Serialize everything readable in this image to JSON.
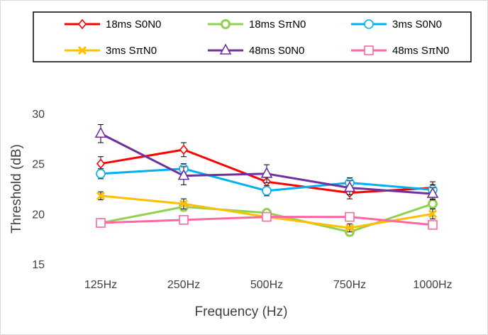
{
  "chart_data": {
    "type": "line",
    "title": "",
    "xlabel": "Frequency (Hz)",
    "ylabel": "Threshold (dB)",
    "ylim": [
      15,
      30
    ],
    "yticks": [
      15,
      20,
      25,
      30
    ],
    "categories": [
      "125Hz",
      "250Hz",
      "500Hz",
      "750Hz",
      "1000Hz"
    ],
    "grid": false,
    "legend_position": "top",
    "series": [
      {
        "name": "18ms S0N0",
        "color": "#ff0000",
        "marker": "diamond",
        "values": [
          25.0,
          26.4,
          23.2,
          22.1,
          22.6
        ],
        "errors": [
          0.7,
          0.7,
          0.6,
          0.6,
          0.6
        ]
      },
      {
        "name": "18ms SπN0",
        "color": "#92d050",
        "marker": "circle-thick",
        "values": [
          19.1,
          20.7,
          20.1,
          18.2,
          21.0
        ],
        "errors": [
          0.3,
          0.4,
          0.3,
          0.4,
          0.5
        ]
      },
      {
        "name": "3ms S0N0",
        "color": "#00b0f0",
        "marker": "circle",
        "values": [
          24.0,
          24.5,
          22.3,
          23.1,
          22.4
        ],
        "errors": [
          0.5,
          0.5,
          0.5,
          0.5,
          0.5
        ]
      },
      {
        "name": "3ms SπN0",
        "color": "#ffc000",
        "marker": "x",
        "values": [
          21.8,
          21.0,
          19.7,
          18.6,
          20.0
        ],
        "errors": [
          0.4,
          0.5,
          0.4,
          0.4,
          0.5
        ]
      },
      {
        "name": "48ms S0N0",
        "color": "#7030a0",
        "marker": "triangle",
        "values": [
          28.0,
          23.8,
          24.0,
          22.6,
          22.0
        ],
        "errors": [
          0.9,
          0.9,
          0.9,
          0.7,
          0.6
        ]
      },
      {
        "name": "48ms SπN0",
        "color": "#ff66a3",
        "marker": "square",
        "values": [
          19.1,
          19.4,
          19.7,
          19.7,
          18.9
        ],
        "errors": [
          0.3,
          0.4,
          0.4,
          0.4,
          0.4
        ]
      }
    ]
  }
}
